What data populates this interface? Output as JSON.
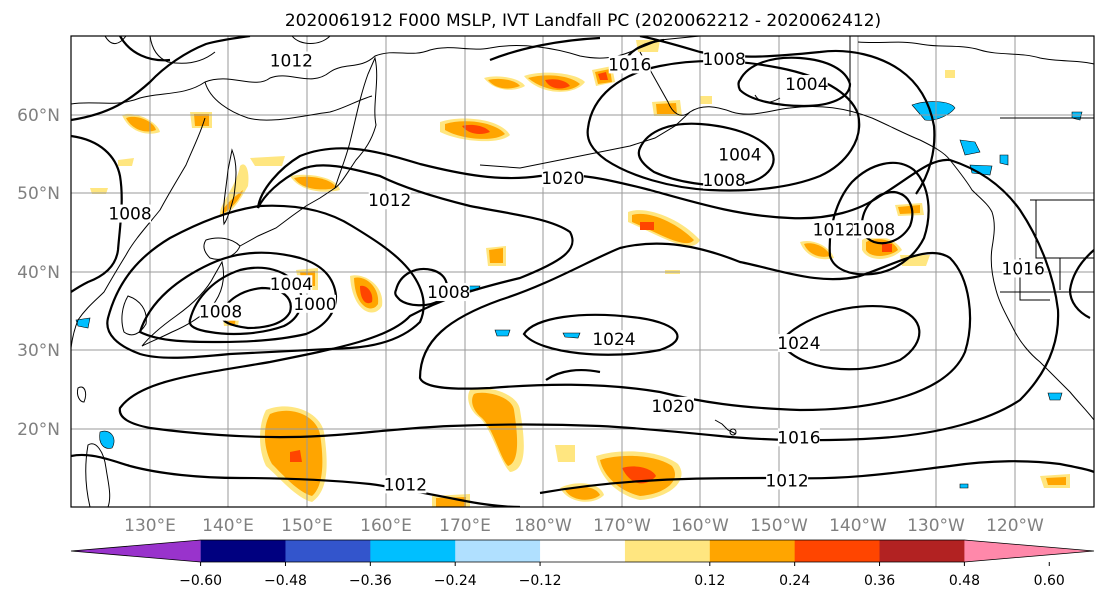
{
  "title": "2020061912 F000 MSLP, IVT Landfall PC (2020062212 - 2020062412)",
  "map": {
    "region": "North Pacific",
    "lat_labels": [
      "60°N",
      "50°N",
      "40°N",
      "30°N",
      "20°N"
    ],
    "lon_labels": [
      "130°E",
      "140°E",
      "150°E",
      "160°E",
      "170°E",
      "180°W",
      "170°W",
      "160°W",
      "150°W",
      "140°W",
      "130°W",
      "120°W"
    ],
    "gridlines": true
  },
  "isobar_labels": [
    {
      "text": "1012",
      "lat": 66.5,
      "lon": 148
    },
    {
      "text": "1016",
      "lat": 66.0,
      "lon": -169
    },
    {
      "text": "1008",
      "lat": 66.7,
      "lon": -157
    },
    {
      "text": "1004",
      "lat": 63.5,
      "lon": -146.5
    },
    {
      "text": "1004",
      "lat": 54.5,
      "lon": -155
    },
    {
      "text": "1008",
      "lat": 51.3,
      "lon": -157
    },
    {
      "text": "1020",
      "lat": 51.5,
      "lon": -177.5
    },
    {
      "text": "1012",
      "lat": 48.7,
      "lon": 160.5
    },
    {
      "text": "1008",
      "lat": 47.0,
      "lon": 127.5
    },
    {
      "text": "1012",
      "lat": 45.0,
      "lon": -143
    },
    {
      "text": "1008",
      "lat": 45.0,
      "lon": -138
    },
    {
      "text": "1004",
      "lat": 38.0,
      "lon": 148
    },
    {
      "text": "1008",
      "lat": 37.0,
      "lon": 168
    },
    {
      "text": "1000",
      "lat": 35.5,
      "lon": 151
    },
    {
      "text": "1008",
      "lat": 34.5,
      "lon": 139
    },
    {
      "text": "1024",
      "lat": 31.0,
      "lon": -171
    },
    {
      "text": "1024",
      "lat": 30.5,
      "lon": -147.5
    },
    {
      "text": "1020",
      "lat": 22.5,
      "lon": -163.5
    },
    {
      "text": "1016",
      "lat": 18.5,
      "lon": -147.5
    },
    {
      "text": "1012",
      "lat": 12.5,
      "lon": 162.5
    },
    {
      "text": "1012",
      "lat": 13.0,
      "lon": -149
    },
    {
      "text": "1016",
      "lat": 40.0,
      "lon": -119
    }
  ],
  "colorbar": {
    "tick_labels": [
      "−0.60",
      "−0.48",
      "−0.36",
      "−0.24",
      "−0.12",
      "0.12",
      "0.24",
      "0.36",
      "0.48",
      "0.60"
    ],
    "colors": [
      "#9933cc",
      "#000080",
      "#3355cc",
      "#00bfff",
      "#b0e0ff",
      "#ffffff",
      "#ffe680",
      "#ffa500",
      "#ff4500",
      "#b22222",
      "#ff88aa"
    ]
  }
}
